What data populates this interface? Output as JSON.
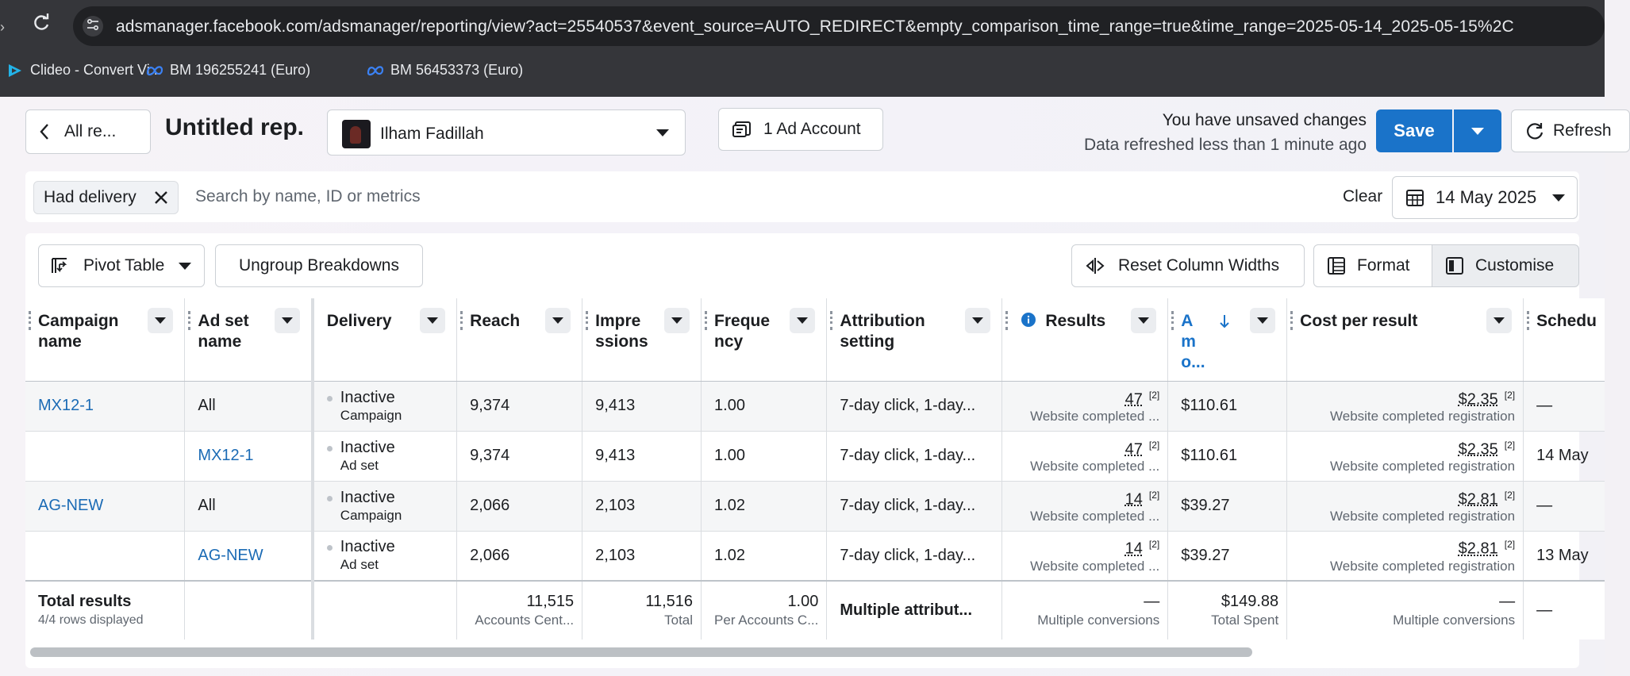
{
  "browser": {
    "url": "adsmanager.facebook.com/adsmanager/reporting/view?act=25540537&event_source=AUTO_REDIRECT&empty_comparison_time_range=true&time_range=2025-05-14_2025-05-15%2C",
    "bookmarks": [
      {
        "label": "Clideo - Convert Vi...",
        "icon": "clideo-icon"
      },
      {
        "label": "BM 196255241 (Euro)",
        "icon": "meta-icon"
      },
      {
        "label": "BM 56453373 (Euro)",
        "icon": "meta-icon"
      }
    ]
  },
  "header": {
    "back_label": "All re...",
    "title": "Untitled rep.",
    "account_name": "Ilham Fadillah",
    "ad_account_label": "1 Ad Account",
    "unsaved_text": "You have unsaved changes",
    "refreshed_text": "Data refreshed less than 1 minute ago",
    "save_label": "Save",
    "refresh_label": "Refresh"
  },
  "filters": {
    "chip_label": "Had delivery",
    "search_placeholder": "Search by name, ID or metrics",
    "clear_label": "Clear",
    "date_label": "14 May 2025"
  },
  "toolbar": {
    "pivot_label": "Pivot Table",
    "ungroup_label": "Ungroup Breakdowns",
    "reset_label": "Reset Column Widths",
    "format_label": "Format",
    "customise_label": "Customise"
  },
  "columns": [
    {
      "l1": "Campaign",
      "l2": "name"
    },
    {
      "l1": "Ad set",
      "l2": "name"
    },
    {
      "l1": "Delivery",
      "l2": ""
    },
    {
      "l1": "Reach",
      "l2": ""
    },
    {
      "l1": "Impre",
      "l2": "ssions"
    },
    {
      "l1": "Freque",
      "l2": "ncy"
    },
    {
      "l1": "Attribution",
      "l2": "setting"
    },
    {
      "l1": "Results",
      "l2": ""
    },
    {
      "l1": "A",
      "l2": "m",
      "l3": "o..."
    },
    {
      "l1": "Cost per result",
      "l2": ""
    },
    {
      "l1": "Schedu",
      "l2": ""
    }
  ],
  "rows": [
    {
      "campaign": "MX12-1",
      "adset": "All",
      "status": "Inactive",
      "level": "Campaign",
      "reach": "9,374",
      "impressions": "9,413",
      "frequency": "1.00",
      "attribution": "7-day click, 1-day...",
      "results": "47",
      "results_fn": "[2]",
      "results_desc": "Website completed ...",
      "amount": "$110.61",
      "cpr": "$2.35",
      "cpr_fn": "[2]",
      "cpr_desc": "Website completed registration",
      "schedule": "—"
    },
    {
      "campaign": "",
      "adset": "MX12-1",
      "status": "Inactive",
      "level": "Ad set",
      "reach": "9,374",
      "impressions": "9,413",
      "frequency": "1.00",
      "attribution": "7-day click, 1-day...",
      "results": "47",
      "results_fn": "[2]",
      "results_desc": "Website completed ...",
      "amount": "$110.61",
      "cpr": "$2.35",
      "cpr_fn": "[2]",
      "cpr_desc": "Website completed registration",
      "schedule": "14 May"
    },
    {
      "campaign": "AG-NEW",
      "adset": "All",
      "status": "Inactive",
      "level": "Campaign",
      "reach": "2,066",
      "impressions": "2,103",
      "frequency": "1.02",
      "attribution": "7-day click, 1-day...",
      "results": "14",
      "results_fn": "[2]",
      "results_desc": "Website completed ...",
      "amount": "$39.27",
      "cpr": "$2.81",
      "cpr_fn": "[2]",
      "cpr_desc": "Website completed registration",
      "schedule": "—"
    },
    {
      "campaign": "",
      "adset": "AG-NEW",
      "status": "Inactive",
      "level": "Ad set",
      "reach": "2,066",
      "impressions": "2,103",
      "frequency": "1.02",
      "attribution": "7-day click, 1-day...",
      "results": "14",
      "results_fn": "[2]",
      "results_desc": "Website completed ...",
      "amount": "$39.27",
      "cpr": "$2.81",
      "cpr_fn": "[2]",
      "cpr_desc": "Website completed registration",
      "schedule": "13 May"
    }
  ],
  "totals": {
    "label": "Total results",
    "sub": "4/4 rows displayed",
    "reach": "11,515",
    "reach_desc": "Accounts Cent...",
    "impressions": "11,516",
    "impressions_desc": "Total",
    "frequency": "1.00",
    "frequency_desc": "Per Accounts C...",
    "attribution": "Multiple attribut...",
    "results": "—",
    "results_desc": "Multiple conversions",
    "amount": "$149.88",
    "amount_desc": "Total Spent",
    "cpr": "—",
    "cpr_desc": "Multiple conversions",
    "schedule": "—"
  },
  "colors": {
    "accent": "#1a73c9",
    "link": "#1b6bb5",
    "chrome": "#35363a"
  }
}
